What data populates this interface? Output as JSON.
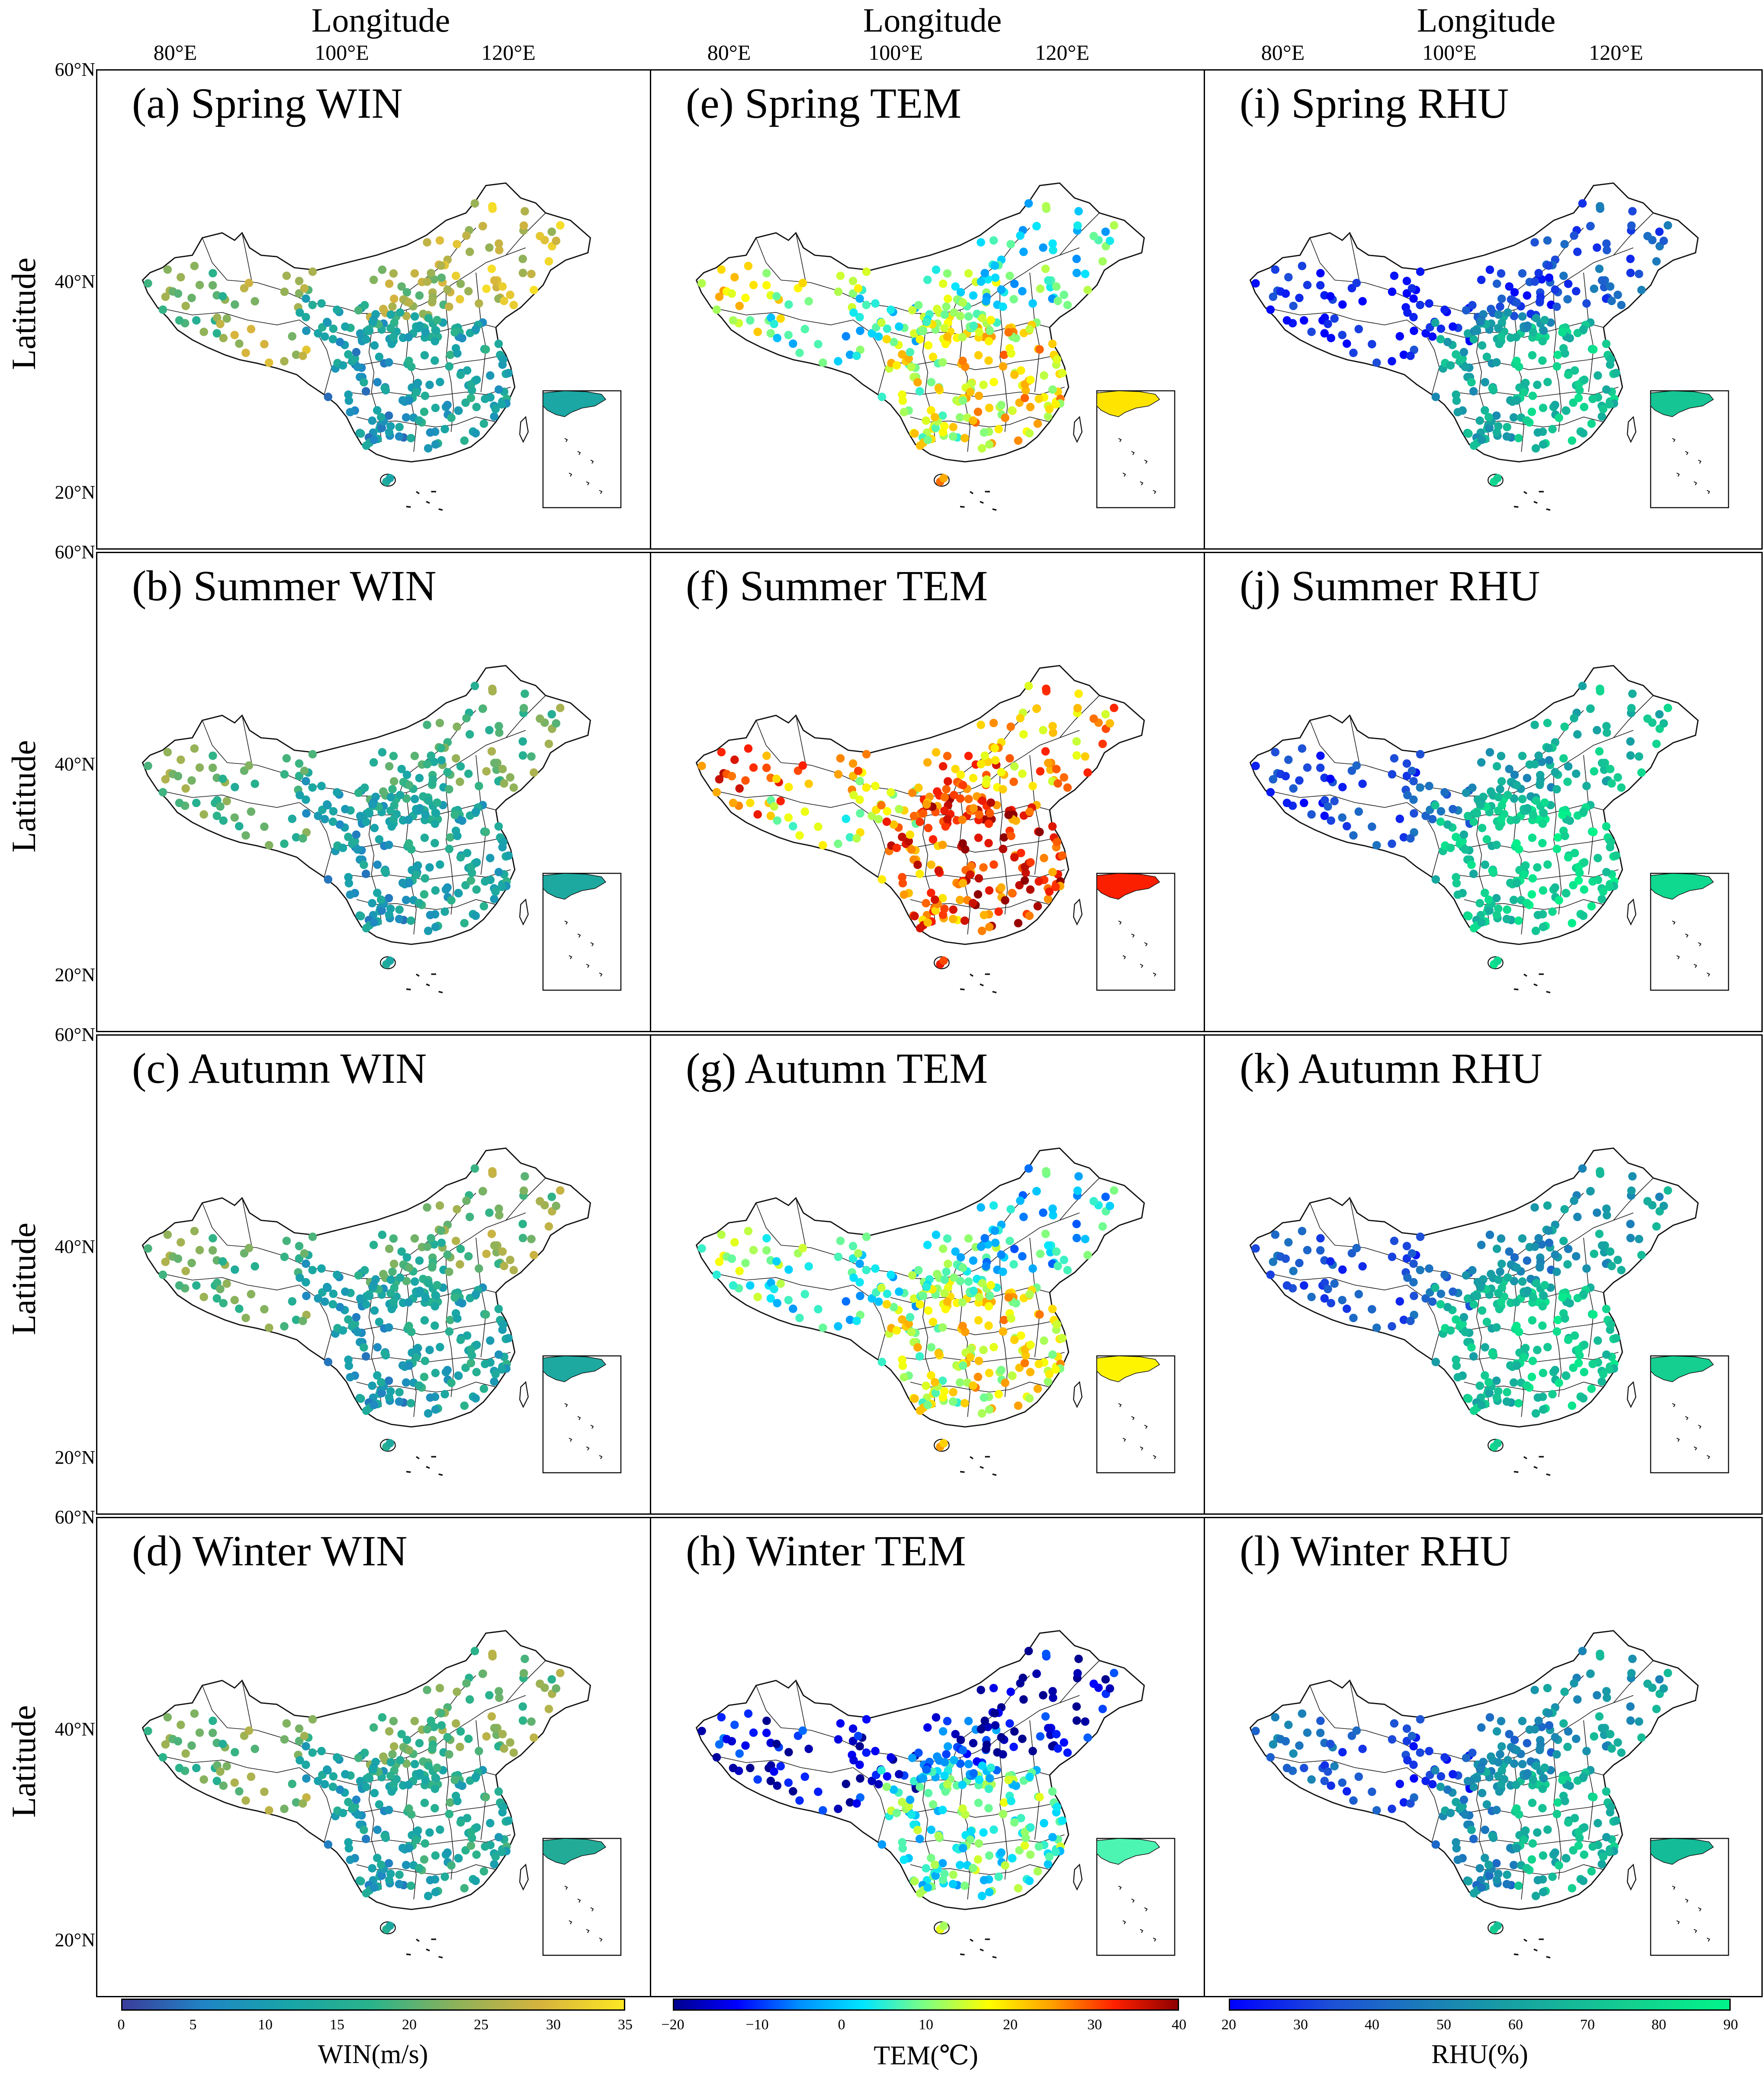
{
  "axes": {
    "longitude_title": "Longitude",
    "latitude_title": "Latitude",
    "lon_ticks": [
      "80°E",
      "100°E",
      "120°E"
    ],
    "lat_ticks": [
      "60°N",
      "40°N",
      "20°N"
    ]
  },
  "panels": [
    {
      "label": "(a) Spring WIN",
      "variable": "WIN"
    },
    {
      "label": "(b) Summer WIN",
      "variable": "WIN"
    },
    {
      "label": "(c) Autumn WIN",
      "variable": "WIN"
    },
    {
      "label": "(d) Winter WIN",
      "variable": "WIN"
    },
    {
      "label": "(e) Spring TEM",
      "variable": "TEM"
    },
    {
      "label": "(f) Summer TEM",
      "variable": "TEM"
    },
    {
      "label": "(g) Autumn TEM",
      "variable": "TEM"
    },
    {
      "label": "(h) Winter TEM",
      "variable": "TEM"
    },
    {
      "label": "(i) Spring RHU",
      "variable": "RHU"
    },
    {
      "label": "(j) Summer RHU",
      "variable": "RHU"
    },
    {
      "label": "(k) Autumn RHU",
      "variable": "RHU"
    },
    {
      "label": "(l) Winter RHU",
      "variable": "RHU"
    }
  ],
  "colorbars": {
    "win": {
      "label": "WIN(m/s)",
      "ticks": [
        "0",
        "5",
        "10",
        "15",
        "20",
        "25",
        "30",
        "35"
      ]
    },
    "tem": {
      "label": "TEM(℃)",
      "ticks": [
        "−20",
        "−10",
        "0",
        "10",
        "20",
        "30",
        "40"
      ]
    },
    "rhu": {
      "label": "RHU(%)",
      "ticks": [
        "20",
        "30",
        "40",
        "50",
        "60",
        "70",
        "80",
        "90"
      ]
    }
  },
  "colors": {
    "win": [
      "#3b3c9c",
      "#1f86c5",
      "#18a5a8",
      "#2bb38a",
      "#8eb25a",
      "#d6b33e",
      "#fde724"
    ],
    "tem": [
      "#00008f",
      "#0000ff",
      "#0090ff",
      "#00e5ff",
      "#80ff80",
      "#ffff00",
      "#ffa000",
      "#ff2000",
      "#8f0000"
    ],
    "rhu": [
      "#0000ff",
      "#1d4fd8",
      "#1b7fb8",
      "#16a89f",
      "#14cf90",
      "#00f58a"
    ]
  }
}
